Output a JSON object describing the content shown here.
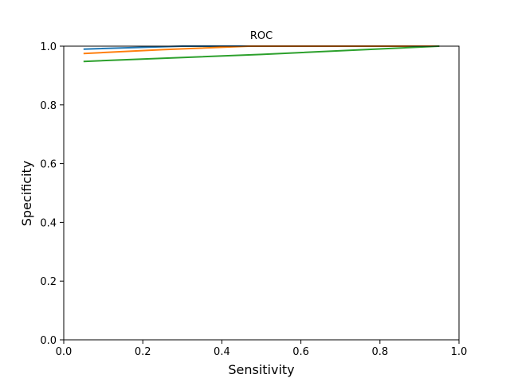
{
  "chart_data": {
    "type": "line",
    "title": "ROC",
    "xlabel": "Sensitivity",
    "ylabel": "Specificity",
    "xlim": [
      0.0,
      1.0
    ],
    "ylim": [
      0.0,
      1.0
    ],
    "grid": false,
    "legend": "none",
    "xticks": [
      "0.0",
      "0.2",
      "0.4",
      "0.6",
      "0.8",
      "1.0"
    ],
    "yticks": [
      "0.0",
      "0.2",
      "0.4",
      "0.6",
      "0.8",
      "1.0"
    ],
    "series": [
      {
        "color": "#1f77b4",
        "x": [
          0.05,
          0.3,
          0.5,
          0.95
        ],
        "y": [
          0.99,
          1.0,
          1.0,
          1.0
        ]
      },
      {
        "color": "#ff7f0e",
        "x": [
          0.05,
          0.25,
          0.47,
          0.95
        ],
        "y": [
          0.975,
          0.988,
          1.0,
          1.0
        ]
      },
      {
        "color": "#2ca02c",
        "x": [
          0.05,
          0.5,
          0.95
        ],
        "y": [
          0.948,
          0.972,
          1.0
        ]
      }
    ]
  }
}
